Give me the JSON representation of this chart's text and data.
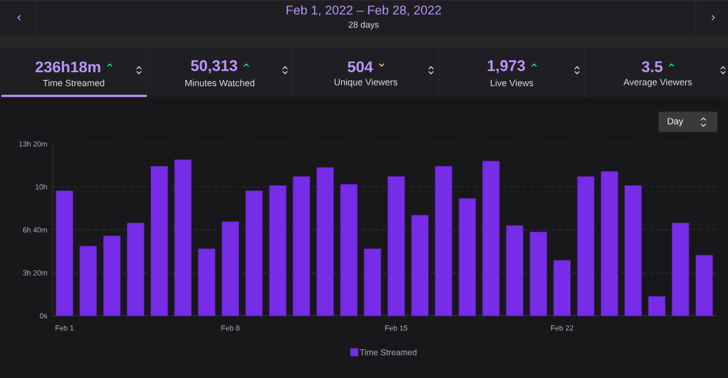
{
  "chart_data": {
    "type": "bar",
    "title": "Feb 1, 2022 – Feb 28, 2022",
    "subtitle": "28 days",
    "annotations": [
      "236h18m",
      "Time Streamed",
      "50,313",
      "Minutes Watched",
      "504",
      "Unique Viewers",
      "1,973",
      "Live Views",
      "3.5",
      "Average Viewers",
      "Day"
    ],
    "categories": [
      "Feb 1",
      null,
      null,
      null,
      null,
      null,
      null,
      "Feb 8",
      null,
      null,
      null,
      null,
      null,
      null,
      "Feb 15",
      null,
      null,
      null,
      null,
      null,
      null,
      "Feb 22",
      null,
      null,
      null,
      null,
      null,
      null
    ],
    "series": [
      {
        "name": "Time Streamed",
        "color": "#772ce8",
        "values": [
          9.7,
          5.4,
          6.2,
          7.2,
          11.6,
          12.1,
          5.2,
          7.3,
          9.7,
          10.1,
          10.8,
          11.5,
          10.2,
          5.2,
          10.8,
          7.8,
          11.6,
          9.1,
          12.0,
          7.0,
          6.5,
          4.3,
          10.8,
          11.2,
          10.1,
          1.5,
          7.2,
          4.7
        ]
      }
    ],
    "ylim": [
      0,
      13.333
    ],
    "yticks": [
      {
        "value": 0,
        "label": "0s"
      },
      {
        "value": 3.333,
        "label": "3h 20m"
      },
      {
        "value": 6.667,
        "label": "6h 40m"
      },
      {
        "value": 10,
        "label": "10h"
      },
      {
        "value": 13.333,
        "label": "13h 20m"
      }
    ],
    "grid": "y",
    "legend": "bottom"
  }
}
